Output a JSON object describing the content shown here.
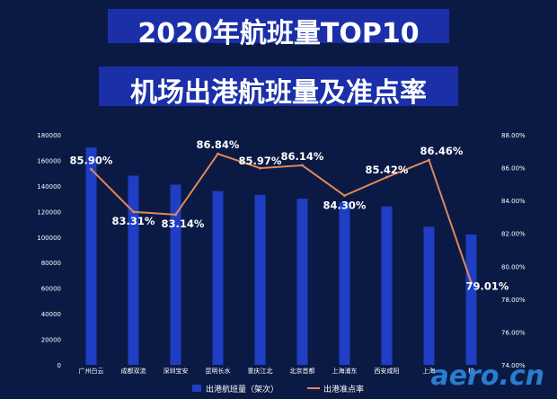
{
  "colors": {
    "background": "#0b1a45",
    "bar": "#1f3ec4",
    "line": "#e0875a",
    "text": "#ffffff",
    "title_band": "#1a2fa8"
  },
  "title": {
    "line1": "2020年航班量TOP10",
    "line2": "机场出港航班量及准点率"
  },
  "chart_data": {
    "type": "bar",
    "categories": [
      "广州白云",
      "成都双流",
      "深圳宝安",
      "昆明长水",
      "重庆江北",
      "北京首都",
      "上海浦东",
      "西安咸阳",
      "上海虹桥",
      "杭州萧山"
    ],
    "category_labels_visible": [
      "广州白云",
      "成都双流",
      "深圳宝安",
      "昆明长水",
      "重庆江北",
      "北京首都",
      "上海浦东",
      "西安咸阳",
      "上海",
      "杭"
    ],
    "series": [
      {
        "name": "出港航班量（架次）",
        "type": "bar",
        "axis": "left",
        "values": [
          170000,
          148000,
          141000,
          136000,
          133000,
          130000,
          127000,
          124000,
          108000,
          102000
        ]
      },
      {
        "name": "出港准点率",
        "type": "line",
        "axis": "right",
        "values": [
          85.9,
          83.31,
          83.14,
          86.84,
          85.97,
          86.14,
          84.3,
          85.42,
          86.46,
          79.01
        ],
        "labels": [
          "85.90%",
          "83.31%",
          "83.14%",
          "86.84%",
          "85.97%",
          "86.14%",
          "84.30%",
          "85.42%",
          "86.46%",
          "79.01%"
        ]
      }
    ],
    "y_left": {
      "min": 0,
      "max": 180000,
      "ticks": [
        "0",
        "20000",
        "40000",
        "60000",
        "80000",
        "100000",
        "120000",
        "140000",
        "160000",
        "180000"
      ]
    },
    "y_right": {
      "min": 74,
      "max": 88,
      "ticks": [
        "74.00%",
        "76.00%",
        "78.00%",
        "80.00%",
        "82.00%",
        "84.00%",
        "86.00%",
        "88.00%"
      ]
    },
    "legend_position": "bottom",
    "grid": false
  },
  "watermark": "aero.cn"
}
